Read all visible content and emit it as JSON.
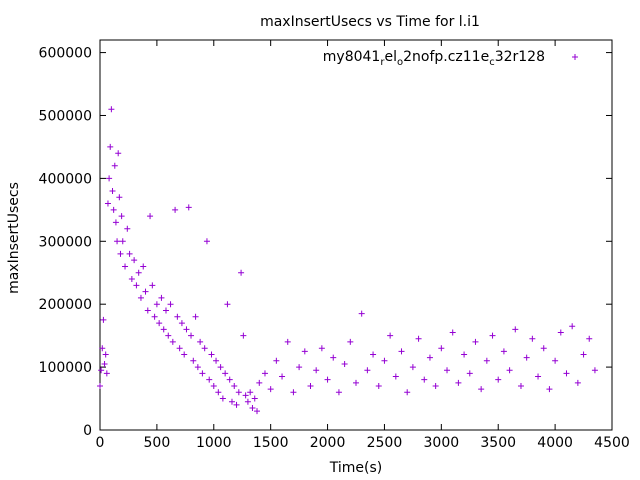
{
  "chart_data": {
    "type": "scatter",
    "title": "maxInsertUsecs vs Time for l.i1",
    "xlabel": "Time(s)",
    "ylabel": "maxInsertUsecs",
    "xlim": [
      0,
      4500
    ],
    "ylim": [
      0,
      620000
    ],
    "xticks": [
      0,
      500,
      1000,
      1500,
      2000,
      2500,
      3000,
      3500,
      4000,
      4500
    ],
    "yticks": [
      0,
      100000,
      200000,
      300000,
      400000,
      500000,
      600000
    ],
    "grid": false,
    "legend_placement": "top-right",
    "marker": "+",
    "color": "#9400d3",
    "series": [
      {
        "name_parts": [
          {
            "text": "my8041",
            "sub": false
          },
          {
            "text": "r",
            "sub": true
          },
          {
            "text": "el",
            "sub": false
          },
          {
            "text": "o",
            "sub": true
          },
          {
            "text": "2nofp.cz11e",
            "sub": false
          },
          {
            "text": "c",
            "sub": true
          },
          {
            "text": "32r128",
            "sub": false
          }
        ],
        "points": [
          [
            0,
            70000
          ],
          [
            10,
            95000
          ],
          [
            20,
            130000
          ],
          [
            30,
            175000
          ],
          [
            40,
            105000
          ],
          [
            50,
            120000
          ],
          [
            60,
            90000
          ],
          [
            70,
            360000
          ],
          [
            80,
            400000
          ],
          [
            90,
            450000
          ],
          [
            100,
            510000
          ],
          [
            110,
            380000
          ],
          [
            120,
            350000
          ],
          [
            130,
            420000
          ],
          [
            140,
            330000
          ],
          [
            150,
            300000
          ],
          [
            160,
            440000
          ],
          [
            170,
            370000
          ],
          [
            180,
            280000
          ],
          [
            190,
            340000
          ],
          [
            200,
            300000
          ],
          [
            220,
            260000
          ],
          [
            240,
            320000
          ],
          [
            260,
            280000
          ],
          [
            280,
            240000
          ],
          [
            300,
            270000
          ],
          [
            320,
            230000
          ],
          [
            340,
            250000
          ],
          [
            360,
            210000
          ],
          [
            380,
            260000
          ],
          [
            400,
            220000
          ],
          [
            420,
            190000
          ],
          [
            440,
            340000
          ],
          [
            460,
            230000
          ],
          [
            480,
            180000
          ],
          [
            500,
            200000
          ],
          [
            520,
            170000
          ],
          [
            540,
            210000
          ],
          [
            560,
            160000
          ],
          [
            580,
            190000
          ],
          [
            600,
            150000
          ],
          [
            620,
            200000
          ],
          [
            640,
            140000
          ],
          [
            660,
            350000
          ],
          [
            680,
            180000
          ],
          [
            700,
            130000
          ],
          [
            720,
            170000
          ],
          [
            740,
            120000
          ],
          [
            760,
            160000
          ],
          [
            780,
            354000
          ],
          [
            800,
            150000
          ],
          [
            820,
            110000
          ],
          [
            840,
            180000
          ],
          [
            860,
            100000
          ],
          [
            880,
            140000
          ],
          [
            900,
            90000
          ],
          [
            920,
            130000
          ],
          [
            940,
            300000
          ],
          [
            960,
            80000
          ],
          [
            980,
            120000
          ],
          [
            1000,
            70000
          ],
          [
            1020,
            110000
          ],
          [
            1040,
            60000
          ],
          [
            1060,
            100000
          ],
          [
            1080,
            50000
          ],
          [
            1100,
            90000
          ],
          [
            1120,
            200000
          ],
          [
            1140,
            80000
          ],
          [
            1160,
            45000
          ],
          [
            1180,
            70000
          ],
          [
            1200,
            40000
          ],
          [
            1220,
            60000
          ],
          [
            1240,
            250000
          ],
          [
            1260,
            150000
          ],
          [
            1280,
            55000
          ],
          [
            1300,
            45000
          ],
          [
            1320,
            60000
          ],
          [
            1340,
            35000
          ],
          [
            1360,
            50000
          ],
          [
            1380,
            30000
          ],
          [
            1400,
            75000
          ],
          [
            1450,
            90000
          ],
          [
            1500,
            65000
          ],
          [
            1550,
            110000
          ],
          [
            1600,
            85000
          ],
          [
            1650,
            140000
          ],
          [
            1700,
            60000
          ],
          [
            1750,
            100000
          ],
          [
            1800,
            125000
          ],
          [
            1850,
            70000
          ],
          [
            1900,
            95000
          ],
          [
            1950,
            130000
          ],
          [
            2000,
            80000
          ],
          [
            2050,
            115000
          ],
          [
            2100,
            60000
          ],
          [
            2150,
            105000
          ],
          [
            2200,
            140000
          ],
          [
            2250,
            75000
          ],
          [
            2300,
            185000
          ],
          [
            2350,
            95000
          ],
          [
            2400,
            120000
          ],
          [
            2450,
            70000
          ],
          [
            2500,
            110000
          ],
          [
            2550,
            150000
          ],
          [
            2600,
            85000
          ],
          [
            2650,
            125000
          ],
          [
            2700,
            60000
          ],
          [
            2750,
            100000
          ],
          [
            2800,
            145000
          ],
          [
            2850,
            80000
          ],
          [
            2900,
            115000
          ],
          [
            2950,
            70000
          ],
          [
            3000,
            130000
          ],
          [
            3050,
            95000
          ],
          [
            3100,
            155000
          ],
          [
            3150,
            75000
          ],
          [
            3200,
            120000
          ],
          [
            3250,
            90000
          ],
          [
            3300,
            140000
          ],
          [
            3350,
            65000
          ],
          [
            3400,
            110000
          ],
          [
            3450,
            150000
          ],
          [
            3500,
            80000
          ],
          [
            3550,
            125000
          ],
          [
            3600,
            95000
          ],
          [
            3650,
            160000
          ],
          [
            3700,
            70000
          ],
          [
            3750,
            115000
          ],
          [
            3800,
            145000
          ],
          [
            3850,
            85000
          ],
          [
            3900,
            130000
          ],
          [
            3950,
            65000
          ],
          [
            4000,
            110000
          ],
          [
            4050,
            155000
          ],
          [
            4100,
            90000
          ],
          [
            4150,
            165000
          ],
          [
            4200,
            75000
          ],
          [
            4250,
            120000
          ],
          [
            4300,
            145000
          ],
          [
            4350,
            95000
          ]
        ]
      }
    ]
  }
}
